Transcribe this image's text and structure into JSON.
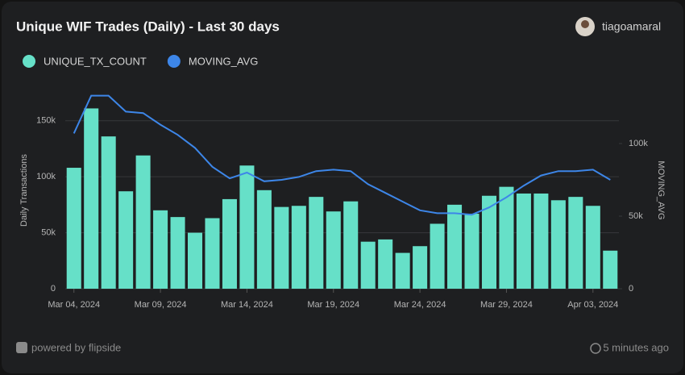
{
  "header": {
    "title": "Unique WIF Trades (Daily) - Last 30 days",
    "user": "tiagoamaral"
  },
  "footer": {
    "brand": "powered by flipside",
    "updated": "5 minutes ago"
  },
  "chart_data": {
    "type": "bar-line",
    "y_label": "Daily Transactions",
    "y2_label": "MOVING_AVG",
    "categories": [
      "Mar 04, 2024",
      null,
      null,
      null,
      null,
      "Mar 09, 2024",
      null,
      null,
      null,
      null,
      "Mar 14, 2024",
      null,
      null,
      null,
      null,
      "Mar 19, 2024",
      null,
      null,
      null,
      null,
      "Mar 24, 2024",
      null,
      null,
      null,
      null,
      "Mar 29, 2024",
      null,
      null,
      null,
      null,
      "Apr 03, 2024",
      null
    ],
    "series": [
      {
        "name": "UNIQUE_TX_COUNT",
        "type": "bar",
        "color": "#66e0c8",
        "values": [
          108000,
          161000,
          136000,
          87000,
          119000,
          70000,
          64000,
          50000,
          63000,
          80000,
          110000,
          88000,
          73000,
          74000,
          82000,
          69000,
          78000,
          42000,
          44000,
          32000,
          38000,
          58000,
          75000,
          67000,
          83000,
          91000,
          85000,
          85000,
          79000,
          82000,
          74000,
          34000
        ]
      },
      {
        "name": "MOVING_AVG",
        "type": "line",
        "axis": "y2",
        "color": "#3d86e8",
        "values": [
          107000,
          133000,
          133000,
          122000,
          121000,
          113000,
          106000,
          97000,
          84000,
          76000,
          80000,
          74000,
          75000,
          77000,
          81000,
          82000,
          81000,
          72000,
          66000,
          60000,
          54000,
          52000,
          52000,
          51000,
          56000,
          63000,
          71000,
          78000,
          81000,
          81000,
          82000,
          75000
        ]
      }
    ],
    "ylim": [
      0,
      175000
    ],
    "yticks": [
      0,
      {
        "value": 50000,
        "label": "50k"
      },
      {
        "value": 100000,
        "label": "100k"
      },
      {
        "value": 150000,
        "label": "150k"
      }
    ],
    "y2lim": [
      0,
      135000
    ],
    "y2ticks": [
      0,
      {
        "value": 50000,
        "label": "50k"
      },
      {
        "value": 100000,
        "label": "100k"
      }
    ],
    "grid": true,
    "legend": "top-left"
  }
}
